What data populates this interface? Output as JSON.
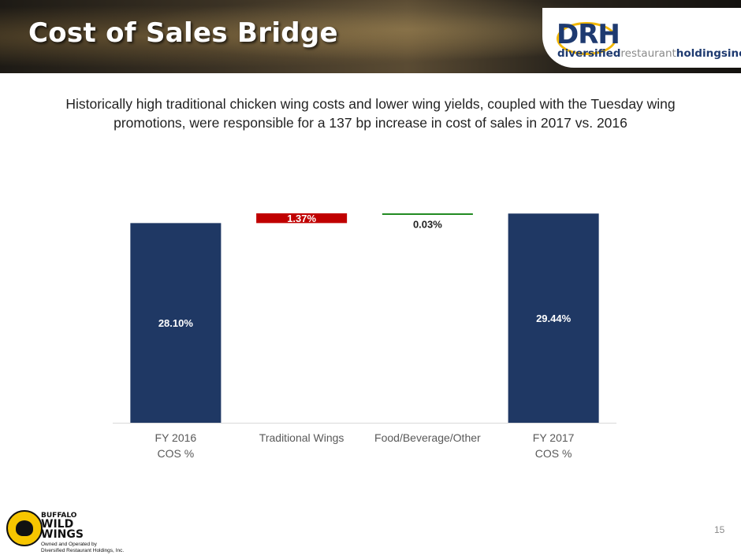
{
  "header": {
    "title": "Cost of Sales Bridge",
    "logo": {
      "letters": "DRH",
      "wordmark_bold": "diversified",
      "wordmark_light": "restaurant",
      "wordmark_bold2": "holdings",
      "wordmark_suffix": "inc."
    }
  },
  "subtitle": "Historically high traditional chicken wing costs and lower wing yields, coupled with the Tuesday wing promotions, were responsible for a 137 bp increase in cost of sales in 2017 vs. 2016",
  "chart_data": {
    "type": "bar",
    "subtype": "waterfall",
    "categories": [
      [
        "FY 2016",
        "COS %"
      ],
      [
        "Traditional Wings"
      ],
      [
        "Food/Beverage/Other"
      ],
      [
        "FY 2017",
        "COS %"
      ]
    ],
    "bars": [
      {
        "kind": "total",
        "start": 0,
        "end": 28.1,
        "label": "28.10%",
        "color": "#1f3864"
      },
      {
        "kind": "delta",
        "start": 28.1,
        "end": 29.47,
        "label": "1.37%",
        "color": "#c00000"
      },
      {
        "kind": "delta",
        "start": 29.47,
        "end": 29.44,
        "label": "0.03%",
        "color": "#228b22"
      },
      {
        "kind": "total",
        "start": 0,
        "end": 29.44,
        "label": "29.44%",
        "color": "#1f3864"
      }
    ],
    "ylim": [
      0,
      29.47
    ],
    "grid": false,
    "legend": "none"
  },
  "footer": {
    "bw_line1": "BUFFALO",
    "bw_line2": "WILD",
    "bw_line3": "WINGS",
    "bw_caption1": "Owned and Operated by",
    "bw_caption2": "Diversified Restaurant Holdings, Inc.",
    "page_number": "15"
  }
}
